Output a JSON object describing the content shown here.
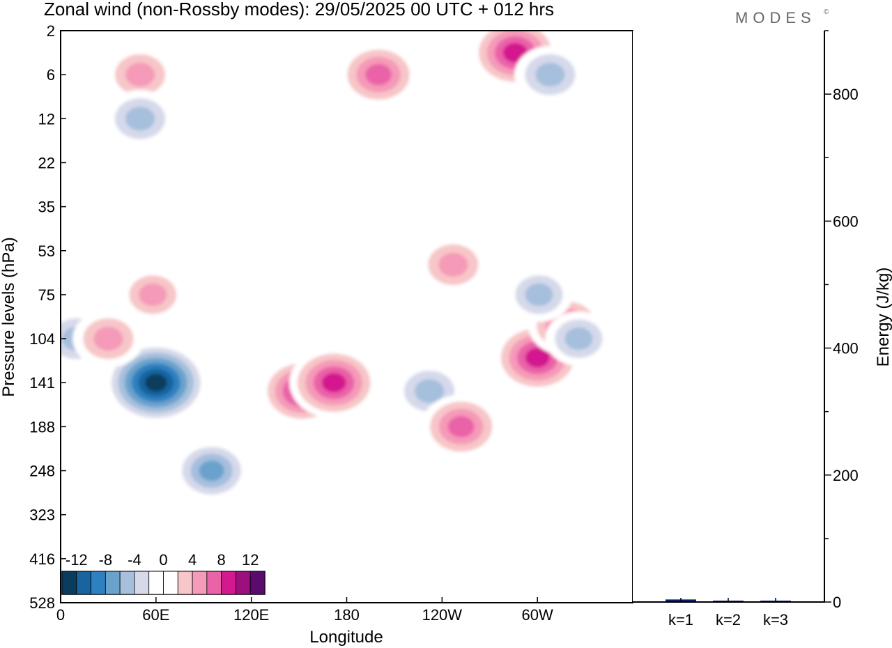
{
  "title": "Zonal wind (non-Rossby modes):  29/05/2025  00 UTC  + 012 hrs",
  "brand": "MODES",
  "brand_mark": "©",
  "chart_data": [
    {
      "type": "heatmap",
      "title": "Zonal wind (non-Rossby modes):  29/05/2025  00 UTC  + 012 hrs",
      "xlabel": "Longitude",
      "ylabel": "Pressure levels (hPa)",
      "x_ticks": [
        "0",
        "60E",
        "120E",
        "180",
        "120W",
        "60W"
      ],
      "x_tick_values": [
        0,
        60,
        120,
        180,
        240,
        300
      ],
      "xlim": [
        0,
        360
      ],
      "y_ticks": [
        "2",
        "6",
        "12",
        "22",
        "35",
        "53",
        "75",
        "104",
        "141",
        "188",
        "248",
        "323",
        "416",
        "528"
      ],
      "ylim": [
        2,
        528
      ],
      "y_inverted": true,
      "colorbar": {
        "labels": [
          "-12",
          "-8",
          "-4",
          "0",
          "4",
          "8",
          "12"
        ],
        "levels": [
          -14,
          -12,
          -10,
          -8,
          -6,
          -4,
          -2,
          0,
          2,
          4,
          6,
          8,
          10,
          12,
          14
        ],
        "colors": [
          "#0b3c5d",
          "#1764a0",
          "#2f80c0",
          "#6aa2cc",
          "#a6bfdd",
          "#d6d9ea",
          "#ffffff",
          "#ffffff",
          "#f7c6c8",
          "#f59ab8",
          "#ea62a8",
          "#d4188f",
          "#9c0f7e",
          "#5b0b6e"
        ]
      },
      "features": [
        {
          "lon": 60,
          "p": 141,
          "value": -13,
          "sign": "easterly"
        },
        {
          "lon": 95,
          "p": 248,
          "value": -7,
          "sign": "easterly"
        },
        {
          "lon": 10,
          "p": 104,
          "value": -6,
          "sign": "easterly"
        },
        {
          "lon": 152,
          "p": 150,
          "value": 9,
          "sign": "westerly"
        },
        {
          "lon": 172,
          "p": 141,
          "value": 10,
          "sign": "westerly"
        },
        {
          "lon": 232,
          "p": 150,
          "value": -6,
          "sign": "easterly"
        },
        {
          "lon": 252,
          "p": 188,
          "value": 8,
          "sign": "westerly"
        },
        {
          "lon": 300,
          "p": 120,
          "value": 10,
          "sign": "westerly"
        },
        {
          "lon": 318,
          "p": 95,
          "value": 7,
          "sign": "westerly"
        },
        {
          "lon": 50,
          "p": 6,
          "value": 6,
          "sign": "westerly"
        },
        {
          "lon": 200,
          "p": 6,
          "value": 8,
          "sign": "westerly"
        },
        {
          "lon": 286,
          "p": 4,
          "value": 10,
          "sign": "westerly"
        },
        {
          "lon": 308,
          "p": 6,
          "value": -6,
          "sign": "easterly"
        },
        {
          "lon": 50,
          "p": 12,
          "value": -6,
          "sign": "easterly"
        },
        {
          "lon": 30,
          "p": 104,
          "value": 6,
          "sign": "westerly"
        },
        {
          "lon": 58,
          "p": 75,
          "value": 5,
          "sign": "westerly"
        },
        {
          "lon": 247,
          "p": 60,
          "value": 6,
          "sign": "westerly"
        },
        {
          "lon": 326,
          "p": 104,
          "value": -5,
          "sign": "easterly"
        },
        {
          "lon": 301,
          "p": 75,
          "value": -5,
          "sign": "easterly"
        }
      ]
    },
    {
      "type": "bar",
      "ylabel": "Energy (J/kg)",
      "ylim": [
        0,
        900
      ],
      "y_ticks": [
        "0",
        "200",
        "400",
        "600",
        "800"
      ],
      "y_tick_values": [
        0,
        200,
        400,
        600,
        800
      ],
      "categories": [
        "k=1",
        "k=2",
        "k=3"
      ],
      "values": [
        4,
        2,
        1
      ],
      "bar_color": "#0a1a6e"
    }
  ]
}
